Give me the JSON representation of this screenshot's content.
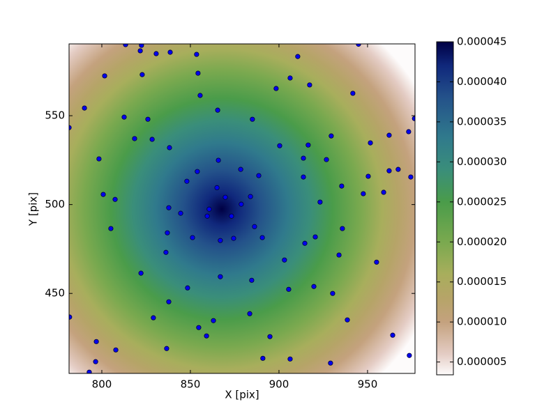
{
  "chart_data": {
    "type": "scatter",
    "xlabel": "X [pix]",
    "ylabel": "Y [pix]",
    "xlim": [
      781.5,
      976.8
    ],
    "ylim": [
      405,
      590.4
    ],
    "xticks": [
      800,
      850,
      900,
      950
    ],
    "yticks": [
      450,
      500,
      550
    ],
    "point_color": "#0000ee",
    "x": [
      813.4,
      822.4,
      821.7,
      830.7,
      838.6,
      853.5,
      910.6,
      944.9,
      801.6,
      822.8,
      906.3,
      854.3,
      941.7,
      898.4,
      917.3,
      855.5,
      790.2,
      812.6,
      865.4,
      826.0,
      885.0,
      781.5,
      818.5,
      828.4,
      838.2,
      929.5,
      900.4,
      916.5,
      962.2,
      951.6,
      973.2,
      976.5,
      798.4,
      865.8,
      853.9,
      878.4,
      888.6,
      913.8,
      926.8,
      848.0,
      865.0,
      935.4,
      913.8,
      950.4,
      962.2,
      967.3,
      974.4,
      800.8,
      807.5,
      869.7,
      883.9,
      837.8,
      844.5,
      860.6,
      859.5,
      873.2,
      878.7,
      923.2,
      959.1,
      947.6,
      805.1,
      837.0,
      886.2,
      851.2,
      866.9,
      874.4,
      890.6,
      914.6,
      920.5,
      935.8,
      836.2,
      933.9,
      955.1,
      903.1,
      822.1,
      866.9,
      884.6,
      848.4,
      905.5,
      919.7,
      930.3,
      837.8,
      781.8,
      829.1,
      863.0,
      883.5,
      938.6,
      854.7,
      859.1,
      894.9,
      796.9,
      807.9,
      836.6,
      890.9,
      906.3,
      796.5,
      929.1,
      964.2,
      973.6,
      792.9
    ],
    "y": [
      590.0,
      589.6,
      586.5,
      584.9,
      585.7,
      584.5,
      583.3,
      590.2,
      572.4,
      573.1,
      571.2,
      573.9,
      562.6,
      565.3,
      567.3,
      561.4,
      554.3,
      549.2,
      553.1,
      548.0,
      548.0,
      543.3,
      537.1,
      536.7,
      532.0,
      538.6,
      533.1,
      533.5,
      539.0,
      534.7,
      541.0,
      548.4,
      525.7,
      524.9,
      518.6,
      519.8,
      516.3,
      526.1,
      525.3,
      513.1,
      509.5,
      510.4,
      515.5,
      515.9,
      519.0,
      519.8,
      515.5,
      505.7,
      502.9,
      504.1,
      504.5,
      498.2,
      495.1,
      497.4,
      493.5,
      493.5,
      500.2,
      501.4,
      506.9,
      506.1,
      486.5,
      484.1,
      487.6,
      481.4,
      479.8,
      481.0,
      481.4,
      478.2,
      481.8,
      486.5,
      473.1,
      471.6,
      467.6,
      468.8,
      461.4,
      459.4,
      457.4,
      453.1,
      452.3,
      453.9,
      450.0,
      445.3,
      436.7,
      436.3,
      434.7,
      438.6,
      435.1,
      430.8,
      426.1,
      425.7,
      422.9,
      418.2,
      419.0,
      413.5,
      413.1,
      411.6,
      410.8,
      426.5,
      415.1,
      405.7
    ],
    "colorbar": {
      "lim": [
        3.4e-06,
        4.5e-05
      ],
      "ticks": [
        {
          "value": 5e-06,
          "label": "0.000005"
        },
        {
          "value": 1e-05,
          "label": "0.000010"
        },
        {
          "value": 1.5e-05,
          "label": "0.000015"
        },
        {
          "value": 2e-05,
          "label": "0.000020"
        },
        {
          "value": 2.5e-05,
          "label": "0.000025"
        },
        {
          "value": 3e-05,
          "label": "0.000030"
        },
        {
          "value": 3.5e-05,
          "label": "0.000035"
        },
        {
          "value": 4e-05,
          "label": "0.000040"
        },
        {
          "value": 4.5e-05,
          "label": "0.000045"
        }
      ],
      "colormap": [
        {
          "value": 3.4e-06,
          "color": "#fdfbfb"
        },
        {
          "value": 6e-06,
          "color": "#e4ccc4"
        },
        {
          "value": 1e-05,
          "color": "#c4a27e"
        },
        {
          "value": 1.3e-05,
          "color": "#b6a468"
        },
        {
          "value": 1.6e-05,
          "color": "#a8ae5c"
        },
        {
          "value": 2e-05,
          "color": "#7aa94f"
        },
        {
          "value": 2.5e-05,
          "color": "#4a9c4a"
        },
        {
          "value": 2.9e-05,
          "color": "#3a8e7a"
        },
        {
          "value": 3.3e-05,
          "color": "#307a8c"
        },
        {
          "value": 3.8e-05,
          "color": "#24528a"
        },
        {
          "value": 4.2e-05,
          "color": "#10287c"
        },
        {
          "value": 4.5e-05,
          "color": "#000044"
        }
      ]
    }
  }
}
